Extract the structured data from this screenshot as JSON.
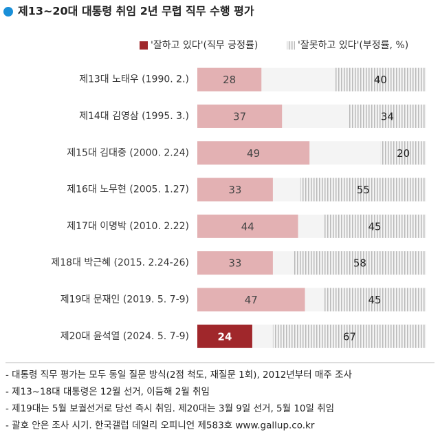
{
  "chart_data": {
    "type": "diverging_bar",
    "title": "제13~20대 대통령 취임 2년 무렵 직무 수행 평가",
    "categories": [
      "제13대 노태우 (1990. 2.)",
      "제14대 김영삼 (1995. 3.)",
      "제15대 김대중 (2000. 2.24)",
      "제16대 노무현 (2005. 1.27)",
      "제17대 이명박 (2010. 2.22)",
      "제18대 박근혜 (2015. 2.24-26)",
      "제19대 문재인 (2019. 5. 7-9)",
      "제20대 윤석열 (2024. 5. 7-9)"
    ],
    "xlim": [
      0,
      100
    ],
    "series": [
      {
        "name": "'잘하고 있다'(직무 긍정률)",
        "color": "#a0272b",
        "side": "left",
        "point_colors": [
          "#e3b1b3",
          "#e3b1b3",
          "#e3b1b3",
          "#e3b1b3",
          "#e3b1b3",
          "#e3b1b3",
          "#e3b1b3",
          "#a0272b"
        ],
        "values": [
          28,
          37,
          49,
          33,
          44,
          33,
          47,
          24
        ]
      },
      {
        "name": "'잘못하고 있다'(부정률, %)",
        "color": "#b9b9b9",
        "side": "right",
        "values": [
          40,
          34,
          20,
          55,
          45,
          58,
          45,
          67
        ]
      }
    ],
    "notes": [
      "- 대통령 직무 평가는 모두 동일 질문 방식(2점 척도, 재질문 1회), 2012년부터 매주 조사",
      "- 제13~18대 대통령은 12월 선거, 이듬해 2월 취임",
      "- 제19대는 5월 보궐선거로 당선 즉시 취임. 제20대는 3월 9일 선거, 5월 10일 취임",
      "- 괄호 안은 조사 시기. 한국갤럽 데일리 오피니언 제583호 www.gallup.co.kr"
    ]
  }
}
